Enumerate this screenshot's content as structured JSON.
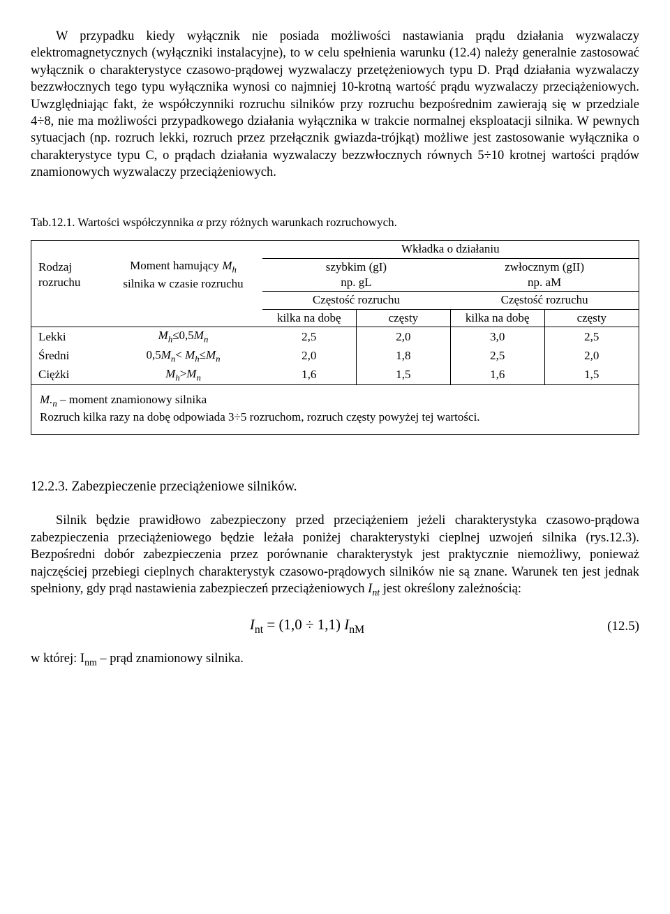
{
  "paragraph1": "W przypadku kiedy wyłącznik nie posiada możliwości nastawiania prądu działania wyzwalaczy elektromagnetycznych (wyłączniki instalacyjne),  to w celu spełnienia warunku (12.4) należy generalnie zastosować wyłącznik o charakterystyce czasowo-prądowej wyzwalaczy przetężeniowych typu D. Prąd działania wyzwalaczy bezzwłocznych tego typu wyłącznika wynosi co najmniej 10-krotną wartość prądu wyzwalaczy przeciążeniowych. Uwzględniając fakt, że współczynniki rozruchu silników przy rozruchu bezpośrednim zawierają się w przedziale 4÷8, nie ma możliwości przypadkowego działania wyłącznika w trakcie normalnej eksploatacji silnika. W pewnych sytuacjach (np. rozruch lekki, rozruch przez przełącznik gwiazda-trójkąt) możliwe jest zastosowanie wyłącznika o charakterystyce typu C, o prądach działania wyzwalaczy bezzwłocznych równych 5÷10 krotnej wartości prądów znamionowych wyzwalaczy przeciążeniowych.",
  "caption_prefix": "Tab.12.1. Wartości współczynnika ",
  "caption_alpha": "α",
  "caption_suffix": " przy różnych warunkach rozruchowych.",
  "table": {
    "col_rodzaj_l1": "Rodzaj",
    "col_rodzaj_l2": "rozruchu",
    "col_moment_prefix": "Moment hamujący ",
    "col_moment_Mh": "M",
    "col_moment_h": "h",
    "col_moment_line2": "silnika w czasie rozruchu",
    "grp_header": "Wkładka o działaniu",
    "gI_l1": "szybkim (gI)",
    "gI_l2": "np. gL",
    "gII_l1": "zwłocznym (gII)",
    "gII_l2": "np. aM",
    "cz_label": "Częstość rozruchu",
    "freq_few": "kilka na dobę",
    "freq_many": "częsty",
    "rows": [
      {
        "label": "Lekki",
        "cond_html": "<span class='it'>M<sub>h</sub></span>≤0,5<span class='it'>M<sub>n</sub></span>",
        "v": [
          "2,5",
          "2,0",
          "3,0",
          "2,5"
        ]
      },
      {
        "label": "Średni",
        "cond_html": "0,5<span class='it'>M<sub>n</sub></span>&lt; <span class='it'>M<sub>h</sub></span>≤<span class='it'>M<sub>n</sub></span>",
        "v": [
          "2,0",
          "1,8",
          "2,5",
          "2,0"
        ]
      },
      {
        "label": "Ciężki",
        "cond_html": "<span class='it'>M<sub>h</sub></span>&gt;<span class='it'>M<sub>n</sub></span>",
        "v": [
          "1,6",
          "1,5",
          "1,6",
          "1,5"
        ]
      }
    ],
    "note1_html": "<span class='it'>M.<sub>n</sub></span> – moment znamionowy silnika",
    "note2": "Rozruch kilka razy na dobę odpowiada 3÷5 rozruchom, rozruch częsty powyżej tej wartości."
  },
  "section_heading": "12.2.3. Zabezpieczenie przeciążeniowe silników.",
  "paragraph2_before_Int": "Silnik będzie prawidłowo zabezpieczony przed przeciążeniem jeżeli charakterystyka czasowo-prądowa zabezpieczenia przeciążeniowego będzie leżała poniżej charakterystyki cieplnej uzwojeń silnika (rys.12.3). Bezpośredni dobór zabezpieczenia przez porównanie charakterystyk  jest praktycznie niemożliwy, ponieważ najczęściej przebiegi cieplnych charakterystyk czasowo-prądowych silników nie są znane. Warunek ten jest jednak spełniony, gdy prąd nastawienia zabezpieczeń przeciążeniowych ",
  "paragraph2_after_Int": " jest określony zależnością:",
  "equation": {
    "lhs_I": "I",
    "lhs_sub": "nt",
    "eq": " = ",
    "paren": "(1,0 ÷ 1,1)",
    "rhs_I": "I",
    "rhs_sub": "nM",
    "number": "(12.5)"
  },
  "paragraph3_prefix": "w której: I",
  "paragraph3_sub": "nm",
  "paragraph3_suffix": " – prąd znamionowy silnika."
}
